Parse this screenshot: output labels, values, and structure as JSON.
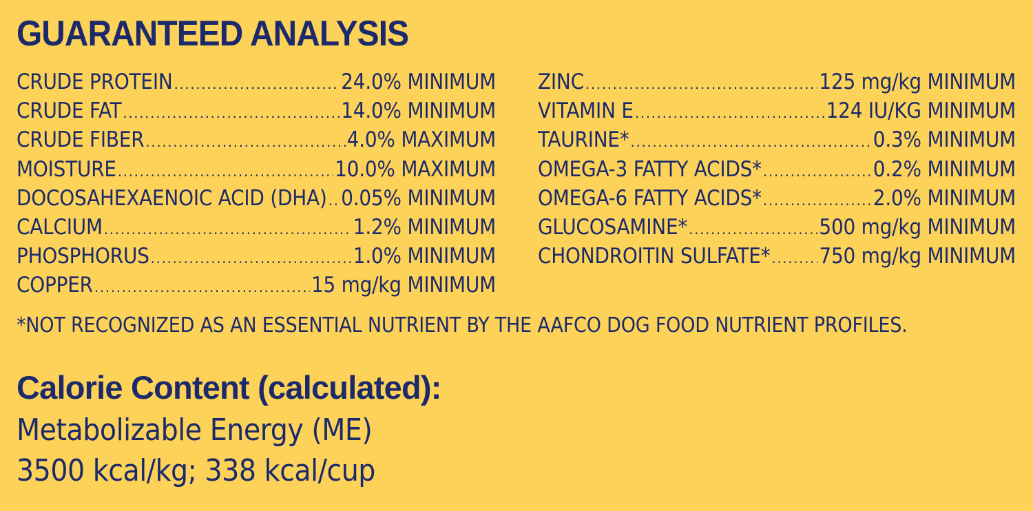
{
  "title": "GUARANTEED ANALYSIS",
  "left_column": [
    {
      "label": "CRUDE PROTEIN",
      "value": "24.0% MINIMUM"
    },
    {
      "label": "CRUDE FAT",
      "value": "14.0% MINIMUM"
    },
    {
      "label": "CRUDE FIBER",
      "value": "4.0% MAXIMUM"
    },
    {
      "label": "MOISTURE",
      "value": "10.0% MAXIMUM"
    },
    {
      "label": "DOCOSAHEXAENOIC ACID (DHA)",
      "value": "0.05% MINIMUM"
    },
    {
      "label": "CALCIUM",
      "value": "1.2% MINIMUM"
    },
    {
      "label": "PHOSPHORUS",
      "value": "1.0% MINIMUM"
    },
    {
      "label": "COPPER",
      "value": "15 mg/kg MINIMUM"
    }
  ],
  "right_column": [
    {
      "label": "ZINC",
      "value": "125 mg/kg MINIMUM"
    },
    {
      "label": "VITAMIN E",
      "value": "124 IU/KG MINIMUM"
    },
    {
      "label": "TAURINE*",
      "value": "0.3% MINIMUM"
    },
    {
      "label": "OMEGA-3 FATTY ACIDS*",
      "value": "0.2% MINIMUM"
    },
    {
      "label": "OMEGA-6 FATTY ACIDS*",
      "value": "2.0% MINIMUM"
    },
    {
      "label": "GLUCOSAMINE*",
      "value": "500 mg/kg MINIMUM"
    },
    {
      "label": "CHONDROITIN SULFATE*",
      "value": "750 mg/kg MINIMUM"
    }
  ],
  "footnote": "*NOT RECOGNIZED AS AN ESSENTIAL NUTRIENT BY THE AAFCO DOG FOOD NUTRIENT PROFILES.",
  "calorie": {
    "heading": "Calorie Content (calculated):",
    "line1": "Metabolizable Energy (ME)",
    "line2": "3500 kcal/kg; 338 kcal/cup"
  },
  "colors": {
    "background": "#fdd258",
    "text": "#1c2a6b"
  }
}
